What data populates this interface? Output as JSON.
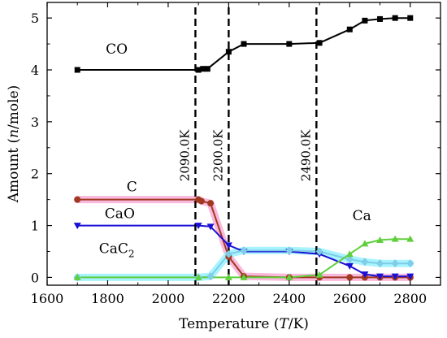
{
  "chart_data": {
    "type": "line",
    "xlabel": "Temperature (T/K)",
    "ylabel": "Amount (n/mole)",
    "xlim": [
      1600,
      2900
    ],
    "ylim": [
      -0.15,
      5.3
    ],
    "xticks": [
      1600,
      1800,
      2000,
      2200,
      2400,
      2600,
      2800
    ],
    "yticks": [
      0,
      1,
      2,
      3,
      4,
      5
    ],
    "grid": false,
    "legend": "none",
    "vertical_lines": [
      {
        "x": 2090,
        "label": "2090.0K"
      },
      {
        "x": 2200,
        "label": "2200.0K"
      },
      {
        "x": 2490,
        "label": "2490.0K"
      }
    ],
    "series": [
      {
        "name": "CO",
        "color": "#000000",
        "halo": "",
        "marker": "square",
        "x": [
          1700,
          2100,
          2115,
          2130,
          2200,
          2250,
          2400,
          2500,
          2600,
          2650,
          2700,
          2750,
          2800
        ],
        "y": [
          4.0,
          4.0,
          4.02,
          4.02,
          4.35,
          4.5,
          4.5,
          4.52,
          4.78,
          4.95,
          4.98,
          5.0,
          5.0
        ]
      },
      {
        "name": "C",
        "color": "#a0391f",
        "halo": "#f9b8dc",
        "marker": "circle",
        "x": [
          1700,
          2100,
          2110,
          2140,
          2200,
          2250,
          2400,
          2500,
          2600,
          2650,
          2700,
          2750,
          2800
        ],
        "y": [
          1.5,
          1.5,
          1.47,
          1.43,
          0.4,
          0.02,
          0.0,
          0.0,
          0.0,
          0.0,
          0.0,
          0.0,
          0.0
        ]
      },
      {
        "name": "CaO",
        "color": "#1a0fd6",
        "halo": "",
        "marker": "triangle-down",
        "x": [
          1700,
          2100,
          2140,
          2200,
          2250,
          2400,
          2500,
          2600,
          2650,
          2700,
          2750,
          2800
        ],
        "y": [
          1.0,
          1.0,
          0.98,
          0.62,
          0.5,
          0.5,
          0.45,
          0.22,
          0.06,
          0.02,
          0.02,
          0.02
        ]
      },
      {
        "name": "CaC2",
        "color": "#7fcde6",
        "halo": "#a7f3ff",
        "marker": "diamond",
        "x": [
          1700,
          2100,
          2140,
          2200,
          2250,
          2400,
          2500,
          2600,
          2650,
          2700,
          2750,
          2800
        ],
        "y": [
          0.0,
          0.0,
          0.02,
          0.45,
          0.52,
          0.52,
          0.5,
          0.35,
          0.3,
          0.27,
          0.27,
          0.27
        ]
      },
      {
        "name": "Ca",
        "color": "#5fd03c",
        "halo": "",
        "marker": "triangle-up",
        "x": [
          1700,
          2100,
          2200,
          2250,
          2400,
          2500,
          2600,
          2650,
          2700,
          2750,
          2800
        ],
        "y": [
          0.0,
          0.0,
          0.0,
          0.0,
          0.0,
          0.05,
          0.45,
          0.65,
          0.72,
          0.74,
          0.74
        ]
      }
    ],
    "series_labels": [
      {
        "series": "CO",
        "text": "CO"
      },
      {
        "series": "C",
        "text": "C"
      },
      {
        "series": "CaO",
        "text": "CaO"
      },
      {
        "series": "CaC2",
        "text": "CaC",
        "sub": "2"
      },
      {
        "series": "Ca",
        "text": "Ca"
      }
    ]
  }
}
